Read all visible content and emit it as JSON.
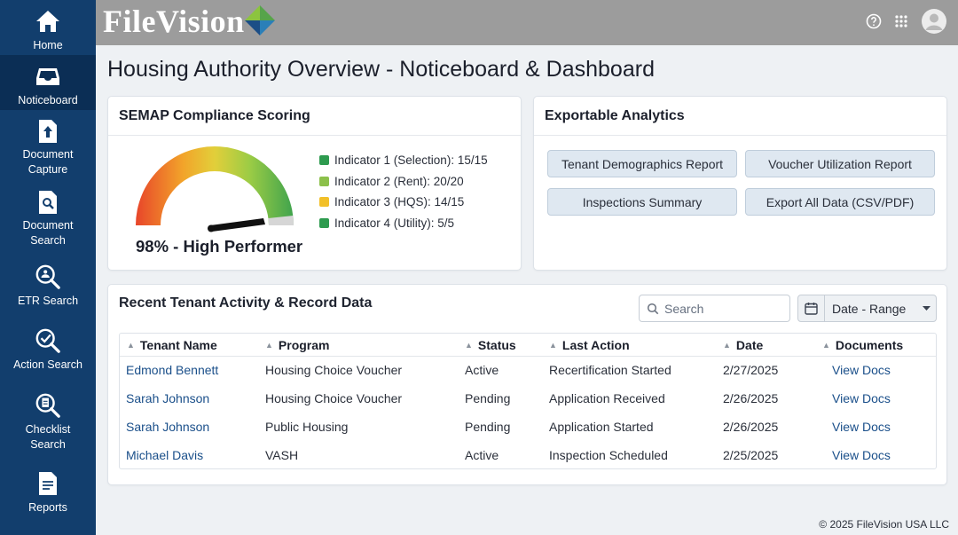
{
  "sidebar": {
    "items": [
      {
        "label": "Home",
        "icon": "home-icon"
      },
      {
        "label": "Noticeboard",
        "icon": "inbox-icon",
        "active": true
      },
      {
        "label": "Document\nCapture",
        "icon": "document-upload-icon"
      },
      {
        "label": "Document\nSearch",
        "icon": "document-search-icon"
      },
      {
        "label": "ETR Search",
        "icon": "etr-search-icon"
      },
      {
        "label": "Action Search",
        "icon": "action-search-icon"
      },
      {
        "label": "Checklist\nSearch",
        "icon": "checklist-search-icon"
      },
      {
        "label": "Reports",
        "icon": "report-icon"
      }
    ]
  },
  "header": {
    "logo_text_part1": "File",
    "logo_text_part2": "Vision",
    "icons": [
      "help-icon",
      "apps-grid-icon",
      "user-avatar-icon"
    ]
  },
  "page": {
    "title": "Housing Authority Overview - Noticeboard & Dashboard"
  },
  "semap": {
    "title": "SEMAP Compliance Scoring",
    "score_percent": 98,
    "caption": "98% - High Performer",
    "indicators": [
      {
        "label": "Indicator 1 (Selection): 15/15",
        "color": "#2e9b4f"
      },
      {
        "label": "Indicator 2 (Rent): 20/20",
        "color": "#8cc04b"
      },
      {
        "label": "Indicator 3 (HQS): 14/15",
        "color": "#f2c029"
      },
      {
        "label": "Indicator 4 (Utility): 5/5",
        "color": "#2e9b4f"
      }
    ]
  },
  "analytics": {
    "title": "Exportable Analytics",
    "buttons": [
      "Tenant Demographics Report",
      "Voucher Utilization Report",
      "Inspections Summary",
      "Export All Data (CSV/PDF)"
    ]
  },
  "activity": {
    "title": "Recent Tenant Activity & Record Data",
    "search_placeholder": "Search",
    "date_range_label": "Date - Range",
    "columns": [
      "Tenant Name",
      "Program",
      "Status",
      "Last Action",
      "Date",
      "Documents"
    ],
    "rows": [
      [
        "Edmond Bennett",
        "Housing Choice Voucher",
        "Active",
        "Recertification Started",
        "2/27/2025",
        "View Docs"
      ],
      [
        "Sarah Johnson",
        "Housing Choice Voucher",
        "Pending",
        "Application Received",
        "2/26/2025",
        "View Docs"
      ],
      [
        "Sarah Johnson",
        "Public Housing",
        "Pending",
        "Application Started",
        "2/26/2025",
        "View Docs"
      ],
      [
        "Michael Davis",
        "VASH",
        "Active",
        "Inspection Scheduled",
        "2/25/2025",
        "View Docs"
      ]
    ]
  },
  "footer": {
    "copyright": "© 2025 FileVision USA LLC"
  },
  "colors": {
    "sidebar": "#123e6d",
    "sidebar_active": "#0b2e55",
    "topbar": "#9c9c9c",
    "link": "#1a4f8a"
  }
}
